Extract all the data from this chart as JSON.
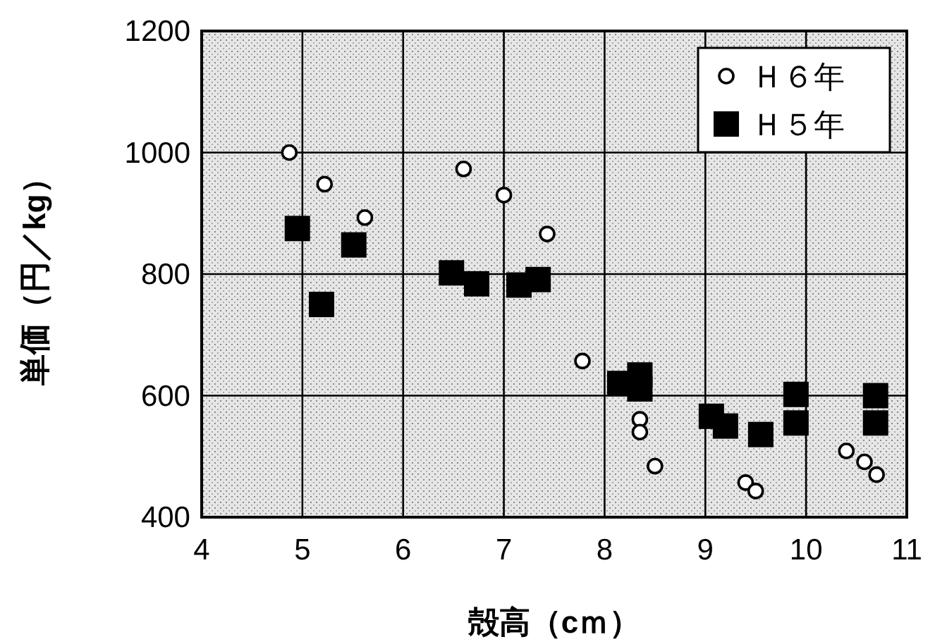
{
  "chart_data": {
    "type": "scatter",
    "xlabel": "殻高（cｍ）",
    "ylabel": "単価（円／kg）",
    "xlim": [
      4,
      11
    ],
    "xticks": [
      4,
      5,
      6,
      7,
      8,
      9,
      10,
      11
    ],
    "ylim": [
      400,
      1200
    ],
    "yticks": [
      400,
      600,
      800,
      1000,
      1200
    ],
    "grid": true,
    "legend": "top right",
    "series": [
      {
        "name": "Ｈ６年",
        "color": "#000000",
        "marker": "circle",
        "x": [
          4.87,
          5.22,
          5.62,
          6.6,
          7.0,
          7.43,
          7.78,
          8.35,
          8.35,
          8.5,
          9.4,
          9.5,
          10.4,
          10.58,
          10.7
        ],
        "values": [
          1000,
          948,
          893,
          973,
          930,
          866,
          657,
          561,
          540,
          484,
          457,
          443,
          509,
          491,
          470
        ]
      },
      {
        "name": "Ｈ５年",
        "color": "#000000",
        "marker": "square",
        "x": [
          4.95,
          5.19,
          5.51,
          6.48,
          6.73,
          7.15,
          7.34,
          8.15,
          8.35,
          8.35,
          9.06,
          9.2,
          9.55,
          9.9,
          9.9,
          10.69,
          10.69
        ],
        "values": [
          875,
          750,
          848,
          802,
          784,
          782,
          791,
          620,
          634,
          611,
          566,
          550,
          536,
          602,
          555,
          600,
          555
        ]
      }
    ]
  }
}
